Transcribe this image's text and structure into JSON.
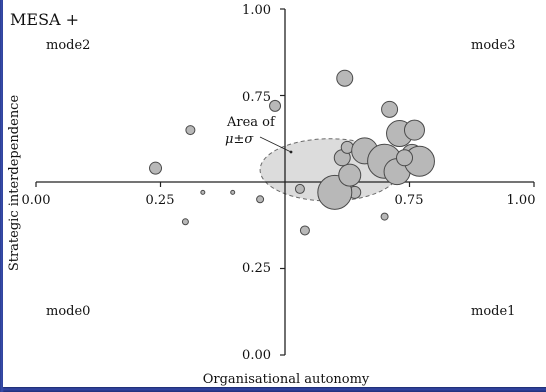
{
  "chart_data": {
    "type": "scatter",
    "title": "MESA +",
    "xlabel": "Organisational autonomy",
    "ylabel": "Strategic interdependence",
    "xlim": [
      0,
      1
    ],
    "ylim": [
      0,
      1
    ],
    "xticks": [
      "0.00",
      "0.25",
      "0.75",
      "1.00"
    ],
    "yticks": [
      "1.00",
      "0.75",
      "0.25",
      "0.00"
    ],
    "quadrants": [
      "mode2",
      "mode3",
      "mode0",
      "mode1"
    ],
    "annotation": {
      "line1": "Area of",
      "line2": "μ±σ"
    },
    "ellipse": {
      "cx": 0.59,
      "cy": 0.535,
      "rx": 0.14,
      "ry": 0.09
    },
    "points": [
      {
        "x": 0.62,
        "y": 0.8,
        "s": 8
      },
      {
        "x": 0.48,
        "y": 0.72,
        "s": 5.5
      },
      {
        "x": 0.31,
        "y": 0.65,
        "s": 4.5
      },
      {
        "x": 0.71,
        "y": 0.71,
        "s": 8
      },
      {
        "x": 0.24,
        "y": 0.54,
        "s": 6
      },
      {
        "x": 0.335,
        "y": 0.47,
        "s": 2
      },
      {
        "x": 0.395,
        "y": 0.47,
        "s": 2
      },
      {
        "x": 0.3,
        "y": 0.385,
        "s": 3
      },
      {
        "x": 0.45,
        "y": 0.45,
        "s": 3.5
      },
      {
        "x": 0.54,
        "y": 0.36,
        "s": 4.5
      },
      {
        "x": 0.53,
        "y": 0.48,
        "s": 4.5
      },
      {
        "x": 0.7,
        "y": 0.4,
        "s": 3.5
      },
      {
        "x": 0.64,
        "y": 0.47,
        "s": 6
      },
      {
        "x": 0.6,
        "y": 0.47,
        "s": 17
      },
      {
        "x": 0.63,
        "y": 0.52,
        "s": 11
      },
      {
        "x": 0.615,
        "y": 0.57,
        "s": 8
      },
      {
        "x": 0.625,
        "y": 0.6,
        "s": 6
      },
      {
        "x": 0.66,
        "y": 0.59,
        "s": 13
      },
      {
        "x": 0.7,
        "y": 0.56,
        "s": 17
      },
      {
        "x": 0.73,
        "y": 0.64,
        "s": 13
      },
      {
        "x": 0.76,
        "y": 0.65,
        "s": 10
      },
      {
        "x": 0.725,
        "y": 0.53,
        "s": 13
      },
      {
        "x": 0.755,
        "y": 0.58,
        "s": 10
      },
      {
        "x": 0.77,
        "y": 0.56,
        "s": 15
      },
      {
        "x": 0.74,
        "y": 0.57,
        "s": 8
      }
    ]
  }
}
